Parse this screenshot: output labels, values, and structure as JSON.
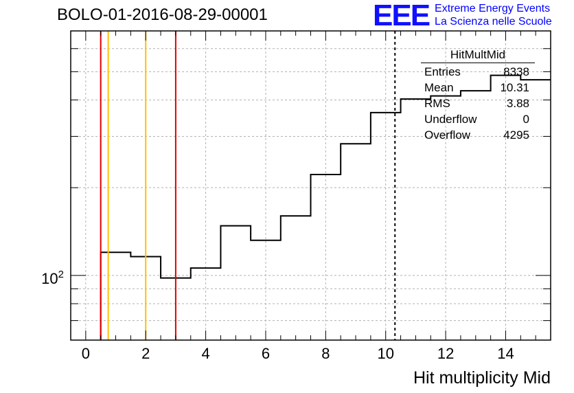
{
  "title": "BOLO-01-2016-08-29-00001",
  "logo": {
    "mark": "EEE",
    "line1": "Extreme Energy Events",
    "line2": "La Scienza nelle Scuole"
  },
  "stats": {
    "name": "HitMultMid",
    "rows": [
      {
        "label": "Entries",
        "value": "8338"
      },
      {
        "label": "Mean",
        "value": "10.31"
      },
      {
        "label": "RMS",
        "value": "3.88"
      },
      {
        "label": "Underflow",
        "value": "0"
      },
      {
        "label": "Overflow",
        "value": "4295"
      }
    ]
  },
  "chart_data": {
    "type": "histogram",
    "xlabel": "Hit multiplicity Mid",
    "xlim": [
      -0.5,
      15.5
    ],
    "ylim": [
      60,
      690
    ],
    "log_y": true,
    "grid": true,
    "x_ticks": [
      0,
      2,
      4,
      6,
      8,
      10,
      12,
      14
    ],
    "y_tick_labels": [
      {
        "value": 100,
        "label": "10",
        "exp": "2"
      }
    ],
    "bins": [
      {
        "low": 0.5,
        "high": 1.5,
        "count": 120
      },
      {
        "low": 1.5,
        "high": 2.5,
        "count": 116
      },
      {
        "low": 2.5,
        "high": 3.5,
        "count": 98
      },
      {
        "low": 3.5,
        "high": 4.5,
        "count": 106
      },
      {
        "low": 4.5,
        "high": 5.5,
        "count": 148
      },
      {
        "low": 5.5,
        "high": 6.5,
        "count": 132
      },
      {
        "low": 6.5,
        "high": 7.5,
        "count": 160
      },
      {
        "low": 7.5,
        "high": 8.5,
        "count": 222
      },
      {
        "low": 8.5,
        "high": 9.5,
        "count": 283
      },
      {
        "low": 9.5,
        "high": 10.5,
        "count": 362
      },
      {
        "low": 10.5,
        "high": 11.5,
        "count": 403
      },
      {
        "low": 11.5,
        "high": 12.5,
        "count": 413
      },
      {
        "low": 12.5,
        "high": 13.5,
        "count": 430
      },
      {
        "low": 13.5,
        "high": 14.5,
        "count": 486
      },
      {
        "low": 14.5,
        "high": 15.5,
        "count": 469
      }
    ],
    "vertical_lines": [
      {
        "x": 0.5,
        "color": "#e00000",
        "style": "solid"
      },
      {
        "x": 0.75,
        "color": "#ffc000",
        "style": "solid"
      },
      {
        "x": 2.0,
        "color": "#ffc000",
        "style": "solid"
      },
      {
        "x": 3.0,
        "color": "#e00000",
        "style": "solid"
      },
      {
        "x": 10.31,
        "color": "#000000",
        "style": "dashed"
      }
    ]
  }
}
